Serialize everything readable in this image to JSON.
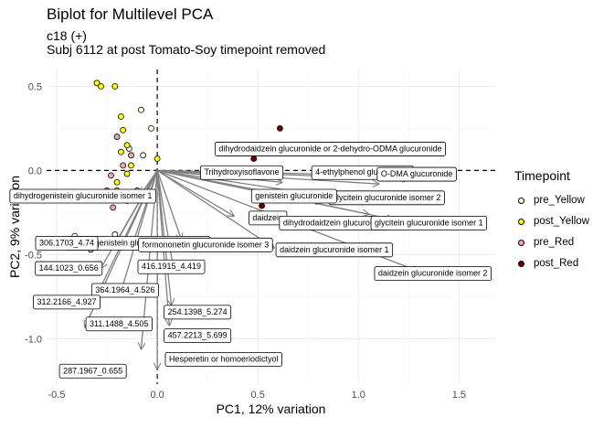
{
  "title": "Biplot for Multilevel PCA",
  "subtitle_lines": [
    "c18 (+)",
    "Subj 6112 at post Tomato-Soy timepoint removed"
  ],
  "legend": {
    "title": "Timepoint",
    "items": [
      {
        "label": "pre_Yellow",
        "color": "#FFFFE0"
      },
      {
        "label": "post_Yellow",
        "color": "#FFFF00"
      },
      {
        "label": "pre_Red",
        "color": "#F4A6B0"
      },
      {
        "label": "post_Red",
        "color": "#6B0000"
      }
    ]
  },
  "colors": {
    "arrow": "#808080",
    "zero_line": "#000000",
    "grid_major": "#EBEBEB",
    "grid_minor": "#F5F5F5"
  },
  "chart_data": {
    "type": "scatter",
    "subtype": "biplot",
    "xlabel": "PC1, 12% variation",
    "ylabel": "PC2, 9% variation",
    "xlim": [
      -0.55,
      1.68
    ],
    "ylim": [
      -1.27,
      0.6
    ],
    "x_ticks": [
      -0.5,
      0.0,
      0.5,
      1.0,
      1.5
    ],
    "x_tick_labels": [
      "-0.5",
      "0.0",
      "0.5",
      "1.0",
      "1.5"
    ],
    "y_ticks": [
      0.5,
      0.0,
      -0.5,
      -1.0
    ],
    "y_tick_labels": [
      "0.5",
      "0.0",
      "-0.5",
      "-1.0"
    ],
    "grid": true,
    "reference_lines": {
      "x": 0,
      "y": 0,
      "style": "dashed"
    },
    "series": [
      {
        "name": "pre_Yellow",
        "points": [
          {
            "x": -0.08,
            "y": 0.36
          },
          {
            "x": -0.03,
            "y": 0.25
          },
          {
            "x": -0.07,
            "y": 0.09
          },
          {
            "x": -0.14,
            "y": 0.13
          },
          {
            "x": -0.1,
            "y": -0.12
          },
          {
            "x": -0.2,
            "y": -0.12
          },
          {
            "x": -0.15,
            "y": -0.18
          },
          {
            "x": -0.21,
            "y": -0.38
          },
          {
            "x": -0.41,
            "y": -0.39
          },
          {
            "x": -0.05,
            "y": -0.14
          }
        ]
      },
      {
        "name": "post_Yellow",
        "points": [
          {
            "x": -0.3,
            "y": 0.52
          },
          {
            "x": -0.28,
            "y": 0.5
          },
          {
            "x": -0.21,
            "y": 0.5
          },
          {
            "x": -0.18,
            "y": 0.32
          },
          {
            "x": -0.17,
            "y": 0.24
          },
          {
            "x": -0.15,
            "y": 0.15
          },
          {
            "x": -0.18,
            "y": 0.11
          },
          {
            "x": -0.13,
            "y": 0.03
          },
          {
            "x": 0.0,
            "y": 0.07
          },
          {
            "x": -0.15,
            "y": -0.02
          },
          {
            "x": -0.2,
            "y": -0.07
          }
        ]
      },
      {
        "name": "pre_Red",
        "points": [
          {
            "x": -0.2,
            "y": 0.2
          },
          {
            "x": -0.13,
            "y": 0.09
          },
          {
            "x": -0.17,
            "y": 0.03
          },
          {
            "x": -0.23,
            "y": -0.03
          },
          {
            "x": -0.25,
            "y": -0.12
          },
          {
            "x": -0.33,
            "y": -0.47
          },
          {
            "x": -0.25,
            "y": -0.44
          },
          {
            "x": -0.22,
            "y": -0.22
          }
        ]
      },
      {
        "name": "post_Red",
        "points": [
          {
            "x": 0.61,
            "y": 0.25
          },
          {
            "x": 0.48,
            "y": 0.07
          },
          {
            "x": 0.55,
            "y": 0.11
          },
          {
            "x": 0.52,
            "y": -0.21
          }
        ]
      }
    ],
    "loadings": [
      {
        "label": "dihydrodaidzein glucuronide or 2-dehydro-ODMA glucuronide",
        "arrow": [
          1.1,
          -0.08
        ],
        "text_at": [
          0.86,
          0.13
        ]
      },
      {
        "label": "4-ethylphenol glucuronide",
        "arrow": [
          1.13,
          -0.03
        ],
        "text_at": [
          1.02,
          -0.01
        ]
      },
      {
        "label": "O-DMA glucuronide",
        "arrow": [
          1.25,
          -0.05
        ],
        "text_at": [
          1.29,
          -0.02
        ]
      },
      {
        "label": "Trihydroxyisoflavone",
        "arrow": [
          0.62,
          -0.07
        ],
        "text_at": [
          0.42,
          -0.01
        ]
      },
      {
        "label": "glycitein glucuronide isomer 2",
        "arrow": [
          1.05,
          -0.19
        ],
        "text_at": [
          1.14,
          -0.16
        ]
      },
      {
        "label": "genistein glucuronide",
        "arrow": [
          0.82,
          -0.19
        ],
        "text_at": [
          0.68,
          -0.15
        ]
      },
      {
        "label": "dihydrogenistein glucuronide isomer 1",
        "arrow": [
          -0.08,
          -0.14
        ],
        "text_at": [
          -0.37,
          -0.15
        ]
      },
      {
        "label": "daidzein",
        "arrow": [
          0.38,
          -0.27
        ],
        "text_at": [
          0.55,
          -0.28
        ]
      },
      {
        "label": "dihydrodaidzein glucuronide",
        "arrow": [
          1.05,
          -0.26
        ],
        "text_at": [
          0.88,
          -0.31
        ]
      },
      {
        "label": "glycitein glucuronide isomer 1",
        "arrow": [
          1.17,
          -0.29
        ],
        "text_at": [
          1.35,
          -0.31
        ]
      },
      {
        "label": "dihydrogenistein glucuronide isomer 2",
        "arrow": [
          -0.12,
          -0.43
        ],
        "text_at": [
          -0.1,
          -0.43
        ]
      },
      {
        "label": "formononetin glucuronide isomer 3",
        "arrow": [
          0.12,
          -0.41
        ],
        "text_at": [
          0.24,
          -0.44
        ]
      },
      {
        "label": "daidzein glucuronide isomer 1",
        "arrow": [
          0.58,
          -0.46
        ],
        "text_at": [
          0.88,
          -0.47
        ]
      },
      {
        "label": "daidzein glucuronide isomer 2",
        "arrow": [
          1.3,
          -0.6
        ],
        "text_at": [
          1.37,
          -0.61
        ]
      },
      {
        "label": "306.1703_4.74",
        "arrow": [
          -0.2,
          -0.42
        ],
        "text_at": [
          -0.45,
          -0.43
        ]
      },
      {
        "label": "144.1023_0.656",
        "arrow": [
          -0.28,
          -0.58
        ],
        "text_at": [
          -0.44,
          -0.58
        ]
      },
      {
        "label": "416.1915_4.419",
        "arrow": [
          0.08,
          -0.58
        ],
        "text_at": [
          0.07,
          -0.57
        ]
      },
      {
        "label": "364.1964_4.526",
        "arrow": [
          -0.18,
          -0.72
        ],
        "text_at": [
          -0.16,
          -0.71
        ]
      },
      {
        "label": "312.2166_4.927",
        "arrow": [
          -0.3,
          -0.74
        ],
        "text_at": [
          -0.45,
          -0.78
        ]
      },
      {
        "label": "254.1398_5.274",
        "arrow": [
          0.07,
          -0.8
        ],
        "text_at": [
          0.2,
          -0.84
        ]
      },
      {
        "label": "311.1488_4.505",
        "arrow": [
          -0.36,
          -0.93
        ],
        "text_at": [
          -0.19,
          -0.91
        ]
      },
      {
        "label": "457.2213_5.699",
        "arrow": [
          0.06,
          -0.92
        ],
        "text_at": [
          0.2,
          -0.98
        ]
      },
      {
        "label": "Hesperetin or homoeriodictyol",
        "arrow": [
          0.0,
          -1.18
        ],
        "text_at": [
          0.33,
          -1.12
        ]
      },
      {
        "label": "287.1967_0.655",
        "arrow": [
          -0.08,
          -1.06
        ],
        "text_at": [
          -0.32,
          -1.19
        ]
      }
    ]
  }
}
